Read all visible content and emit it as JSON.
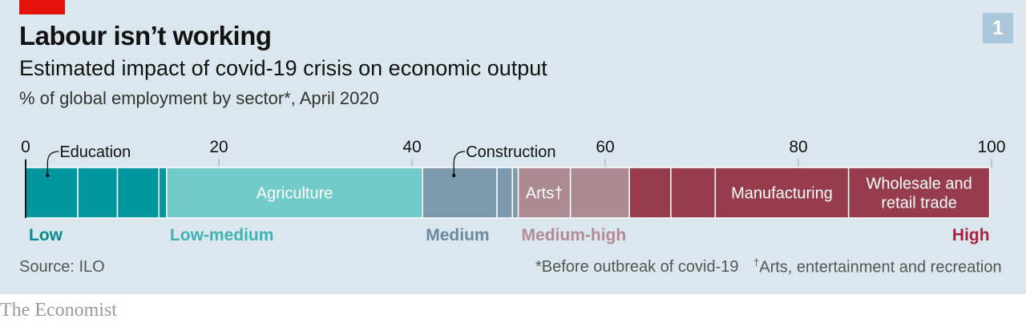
{
  "header": {
    "title": "Labour isn’t working",
    "subtitle": "Estimated impact of covid-19 crisis on economic output",
    "unit_note": "% of global employment by sector*, April 2020",
    "chart_number": "1"
  },
  "footer": {
    "source": "Source: ILO",
    "footnote_star": "*Before outbreak of covid-19",
    "footnote_dagger_mark": "†",
    "footnote_dagger": "Arts, entertainment and recreation",
    "brand": "The Economist"
  },
  "colors": {
    "Low": "#00969e",
    "Low-medium": "#72cbc8",
    "Medium": "#7c9aad",
    "Medium-high": "#ad8a93",
    "High": "#963c4c",
    "Low_text": "#0a8a92",
    "Low-medium_text": "#3fb4b4",
    "Medium_text": "#6a8aa0",
    "Medium-high_text": "#b58a96",
    "High_text": "#a8213d"
  },
  "chart_data": {
    "type": "bar",
    "orientation": "horizontal-stacked",
    "xlim": [
      0,
      100
    ],
    "ticks": [
      {
        "value": 0,
        "label": "0"
      },
      {
        "value": 20,
        "label": "20"
      },
      {
        "value": 40,
        "label": "40"
      },
      {
        "value": 60,
        "label": "60"
      },
      {
        "value": 80,
        "label": "80"
      },
      {
        "value": 100,
        "label": "100"
      }
    ],
    "categories": [
      "Low",
      "Low-medium",
      "Medium",
      "Medium-high",
      "High"
    ],
    "segments": [
      {
        "group": "Low",
        "value": 5.4,
        "label": "Education",
        "label_style": "callout"
      },
      {
        "group": "Low",
        "value": 4.1
      },
      {
        "group": "Low",
        "value": 4.3
      },
      {
        "group": "Low",
        "value": 0.8
      },
      {
        "group": "Low-medium",
        "value": 26.5,
        "label": "Agriculture",
        "label_style": "inside"
      },
      {
        "group": "Medium",
        "value": 7.7,
        "label": "Construction",
        "label_style": "callout"
      },
      {
        "group": "Medium",
        "value": 1.6
      },
      {
        "group": "Medium",
        "value": 0.6
      },
      {
        "group": "Medium-high",
        "value": 5.4,
        "label": "Arts†",
        "label_style": "inside"
      },
      {
        "group": "Medium-high",
        "value": 6.1
      },
      {
        "group": "High",
        "value": 4.3
      },
      {
        "group": "High",
        "value": 4.6
      },
      {
        "group": "High",
        "value": 13.8,
        "label": "Manufacturing",
        "label_style": "inside"
      },
      {
        "group": "High",
        "value": 14.6,
        "label": "Wholesale and\nretail trade",
        "label_style": "inside"
      }
    ]
  }
}
